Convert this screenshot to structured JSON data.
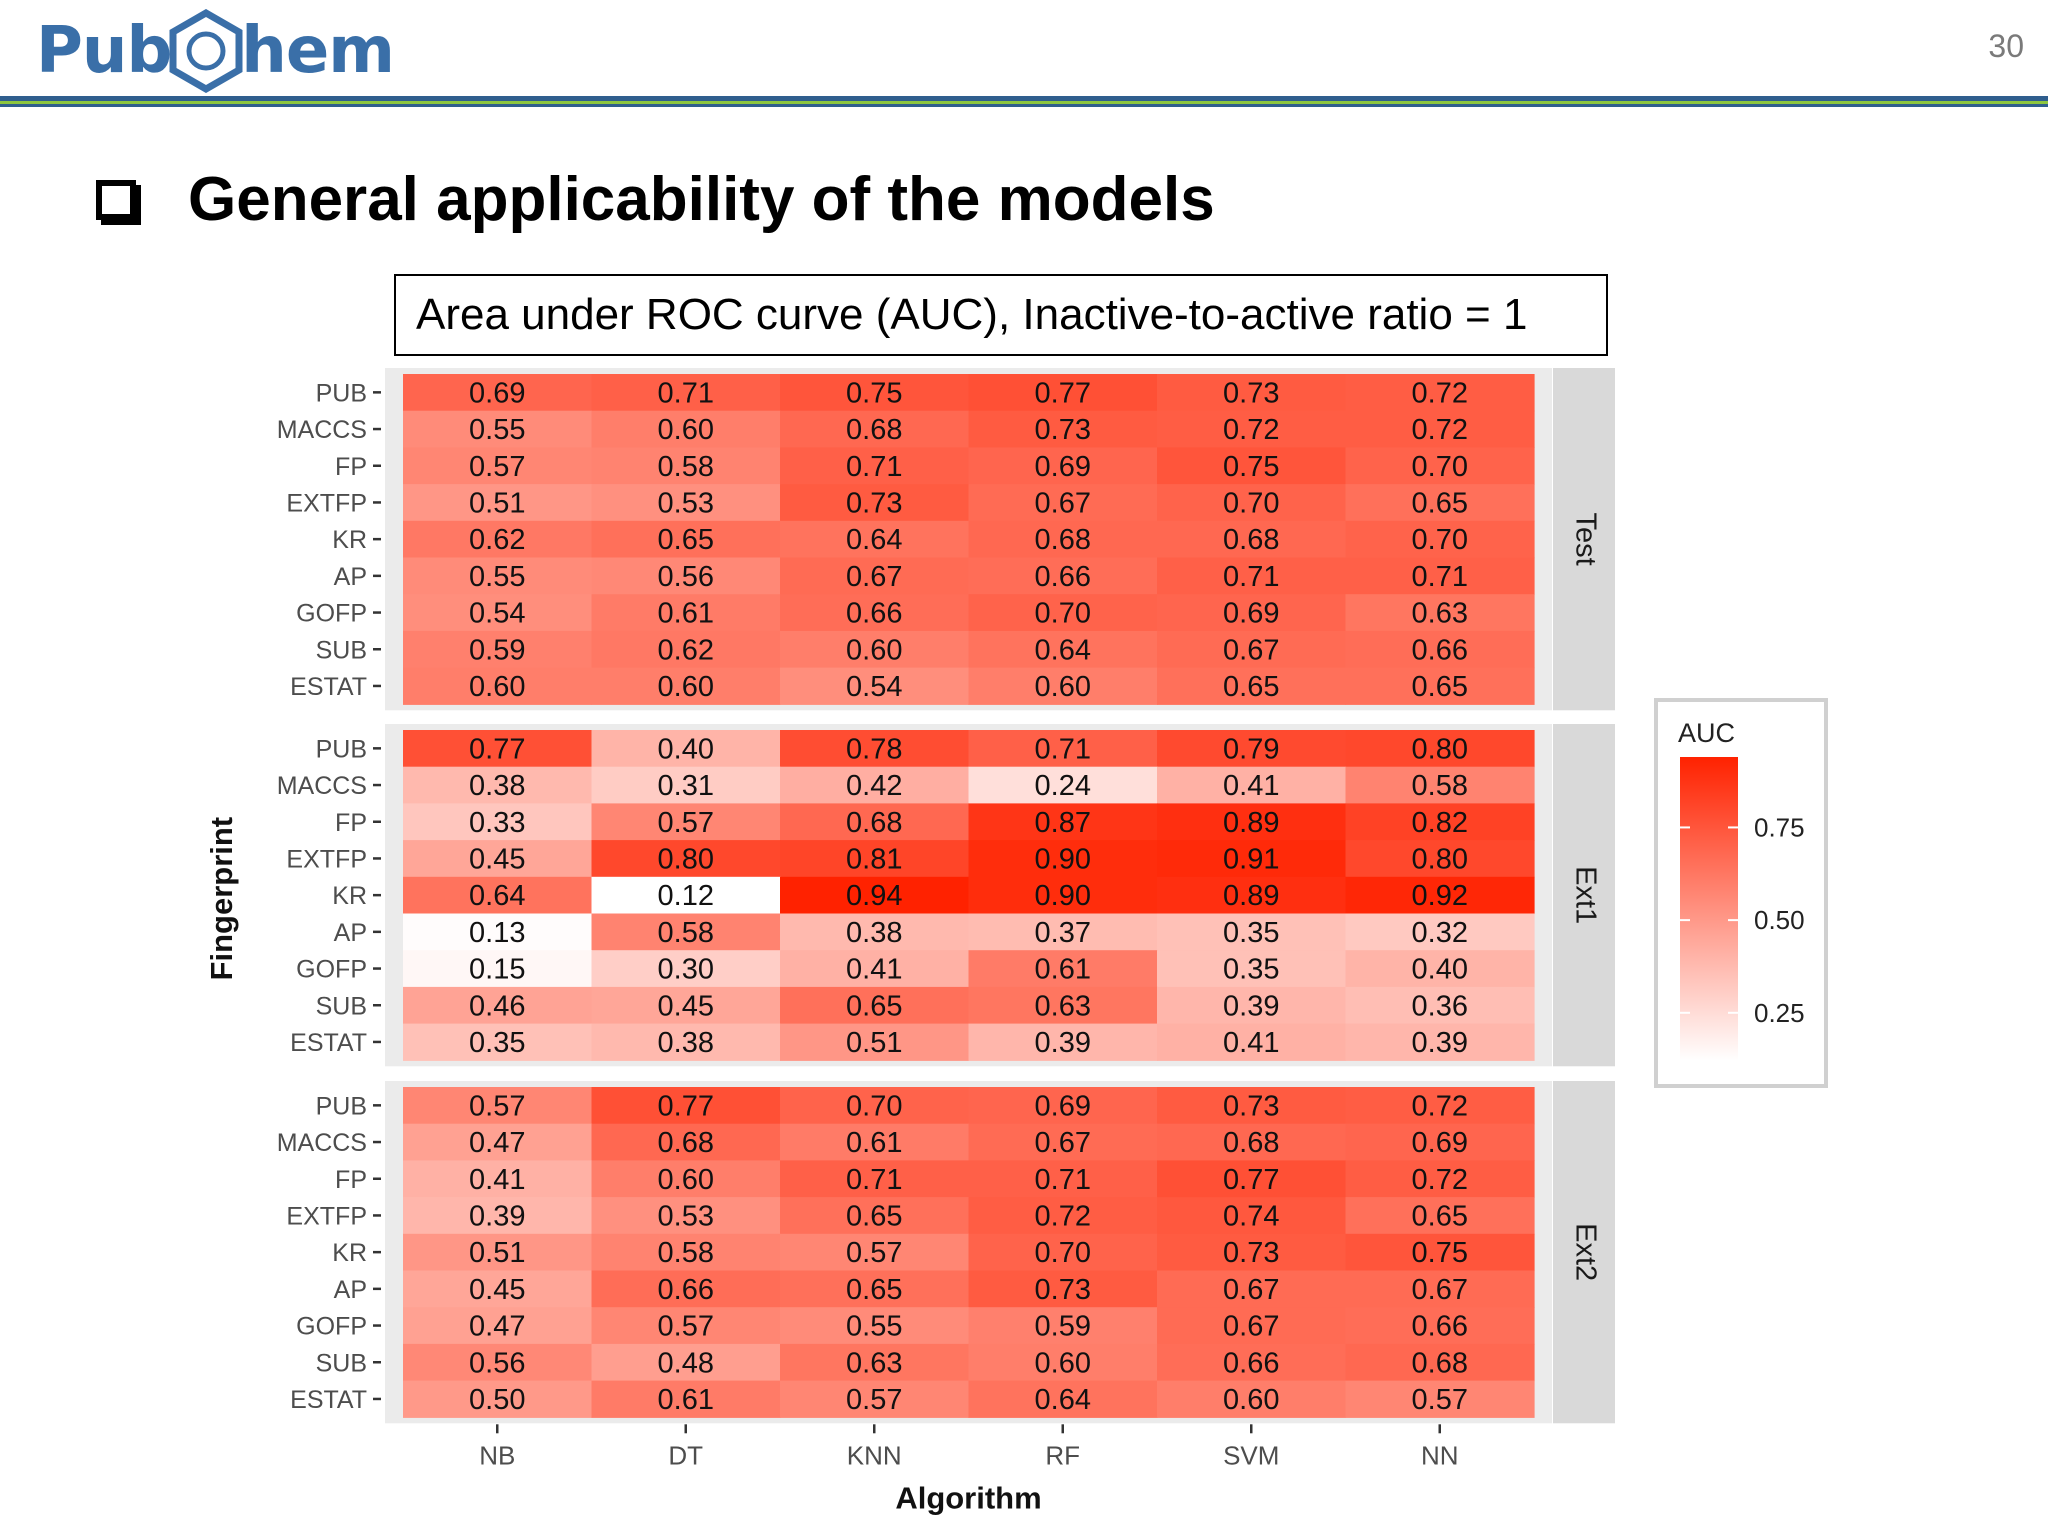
{
  "header": {
    "logo_left": "Pub",
    "logo_right": "hem",
    "page_number": "30"
  },
  "slide": {
    "title": "General applicability of the models"
  },
  "caption": "Area under ROC curve (AUC), Inactive-to-active ratio = 1",
  "colors": {
    "low": "#ffffff",
    "high": "#ff2200",
    "brand_blue": "#3a6fa8",
    "brand_green": "#8cc63f"
  },
  "chart_data": {
    "type": "heatmap",
    "xlabel": "Algorithm",
    "ylabel": "Fingerprint",
    "x_categories": [
      "NB",
      "DT",
      "KNN",
      "RF",
      "SVM",
      "NN"
    ],
    "y_categories": [
      "PUB",
      "MACCS",
      "FP",
      "EXTFP",
      "KR",
      "AP",
      "GOFP",
      "SUB",
      "ESTAT"
    ],
    "value_range": [
      0.12,
      0.94
    ],
    "legend": {
      "title": "AUC",
      "ticks": [
        0.75,
        0.5,
        0.25
      ],
      "tick_labels": [
        "0.75",
        "0.50",
        "0.25"
      ],
      "position": "right"
    },
    "panels": [
      {
        "name": "Test",
        "values": [
          [
            0.69,
            0.71,
            0.75,
            0.77,
            0.73,
            0.72
          ],
          [
            0.55,
            0.6,
            0.68,
            0.73,
            0.72,
            0.72
          ],
          [
            0.57,
            0.58,
            0.71,
            0.69,
            0.75,
            0.7
          ],
          [
            0.51,
            0.53,
            0.73,
            0.67,
            0.7,
            0.65
          ],
          [
            0.62,
            0.65,
            0.64,
            0.68,
            0.68,
            0.7
          ],
          [
            0.55,
            0.56,
            0.67,
            0.66,
            0.71,
            0.71
          ],
          [
            0.54,
            0.61,
            0.66,
            0.7,
            0.69,
            0.63
          ],
          [
            0.59,
            0.62,
            0.6,
            0.64,
            0.67,
            0.66
          ],
          [
            0.6,
            0.6,
            0.54,
            0.6,
            0.65,
            0.65
          ]
        ]
      },
      {
        "name": "Ext1",
        "values": [
          [
            0.77,
            0.4,
            0.78,
            0.71,
            0.79,
            0.8
          ],
          [
            0.38,
            0.31,
            0.42,
            0.24,
            0.41,
            0.58
          ],
          [
            0.33,
            0.57,
            0.68,
            0.87,
            0.89,
            0.82
          ],
          [
            0.45,
            0.8,
            0.81,
            0.9,
            0.91,
            0.8
          ],
          [
            0.64,
            0.12,
            0.94,
            0.9,
            0.89,
            0.92
          ],
          [
            0.13,
            0.58,
            0.38,
            0.37,
            0.35,
            0.32
          ],
          [
            0.15,
            0.3,
            0.41,
            0.61,
            0.35,
            0.4
          ],
          [
            0.46,
            0.45,
            0.65,
            0.63,
            0.39,
            0.36
          ],
          [
            0.35,
            0.38,
            0.51,
            0.39,
            0.41,
            0.39
          ]
        ]
      },
      {
        "name": "Ext2",
        "values": [
          [
            0.57,
            0.77,
            0.7,
            0.69,
            0.73,
            0.72
          ],
          [
            0.47,
            0.68,
            0.61,
            0.67,
            0.68,
            0.69
          ],
          [
            0.41,
            0.6,
            0.71,
            0.71,
            0.77,
            0.72
          ],
          [
            0.39,
            0.53,
            0.65,
            0.72,
            0.74,
            0.65
          ],
          [
            0.51,
            0.58,
            0.57,
            0.7,
            0.73,
            0.75
          ],
          [
            0.45,
            0.66,
            0.65,
            0.73,
            0.67,
            0.67
          ],
          [
            0.47,
            0.57,
            0.55,
            0.59,
            0.67,
            0.66
          ],
          [
            0.56,
            0.48,
            0.63,
            0.6,
            0.66,
            0.68
          ],
          [
            0.5,
            0.61,
            0.57,
            0.64,
            0.6,
            0.57
          ]
        ]
      }
    ]
  }
}
